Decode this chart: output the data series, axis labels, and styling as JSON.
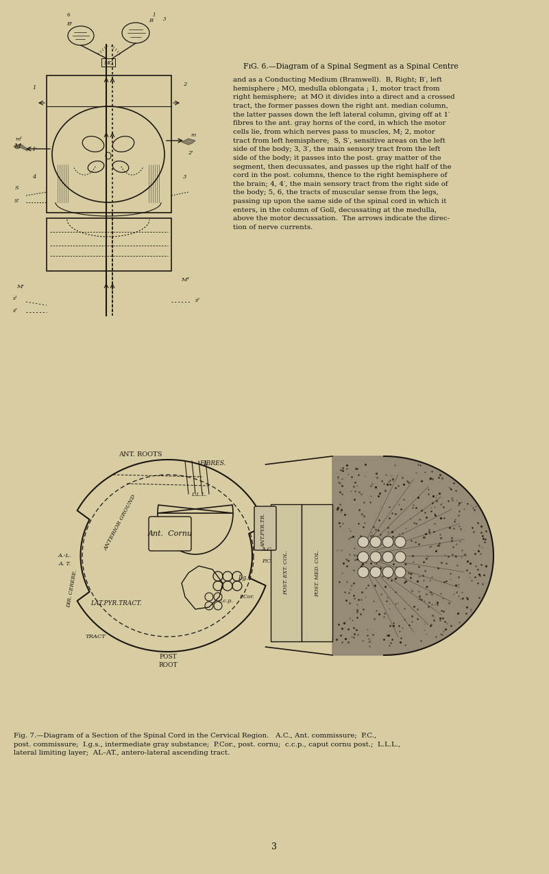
{
  "background_color": "#d8cca3",
  "page_width": 8.01,
  "page_height": 12.74,
  "dpi": 100,
  "fig6_caption_title": "Fig. 6.—Diagram of a Spinal Segment as a Spinal Centre",
  "fig6_caption_body": "and as a Conducting Medium (Bramwell).  B, Right; B′, left\nhemisphere ; MO, medulla oblongata ; 1, motor tract from\nright hemisphere;  at MO it divides into a direct and a crossed\ntract, the former passes down the right ant. median column,\nthe latter passes down the left lateral column, giving off at 1′\nfibres to the ant. gray horns of the cord, in which the motor\ncells lie, from which nerves pass to muscles, M; 2, motor\ntract from left hemisphere;  S, S′, sensitive areas on the left\nside of the body; 3, 3′, the main sensory tract from the left\nside of the body; it passes into the post. gray matter of the\nsegment, then decussates, and passes up the right half of the\ncord in the post. columns, thence to the right hemisphere of\nthe brain; 4, 4′, the main sensory tract from the right side of\nthe body; 5, 6, the tracts of muscular sense from the legs,\npassing up upon the same side of the spinal cord in which it\nenters, in the column of Goll, decussating at the medulla,\nabove the motor decussation.  The arrows indicate the direc-\ntion of nerve currents.",
  "fig7_caption": "Fig. 7.—Diagram of a Section of the Spinal Cord in the Cervical Region.   A.C., Ant. commissure;  P.C.,\npost. commissure;  I.g.s., intermediate gray substance;  P.Cor., post. cornu;  c.c.p., caput cornu post.;  L.L.L.,\nlateral limiting layer;  AL–AT., antero-lateral ascending tract.",
  "page_number": "3",
  "text_color": "#111111",
  "ink_color": "#1a1510"
}
